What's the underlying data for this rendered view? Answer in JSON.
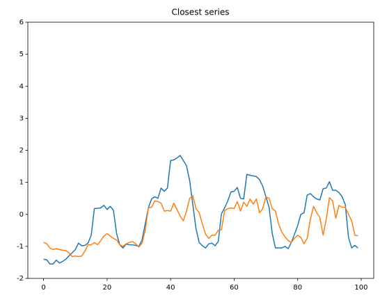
{
  "chart_data": {
    "type": "line",
    "title": "Closest series",
    "x": [
      0,
      1,
      2,
      3,
      4,
      5,
      6,
      7,
      8,
      9,
      10,
      11,
      12,
      13,
      14,
      15,
      16,
      17,
      18,
      19,
      20,
      21,
      22,
      23,
      24,
      25,
      26,
      27,
      28,
      29,
      30,
      31,
      32,
      33,
      34,
      35,
      36,
      37,
      38,
      39,
      40,
      41,
      42,
      43,
      44,
      45,
      46,
      47,
      48,
      49,
      50,
      51,
      52,
      53,
      54,
      55,
      56,
      57,
      58,
      59,
      60,
      61,
      62,
      63,
      64,
      65,
      66,
      67,
      68,
      69,
      70,
      71,
      72,
      73,
      74,
      75,
      76,
      77,
      78,
      79,
      80,
      81,
      82,
      83,
      84,
      85,
      86,
      87,
      88,
      89,
      90,
      91,
      92,
      93,
      94,
      95,
      96,
      97,
      98,
      99
    ],
    "series": [
      {
        "color": "#1f77b4",
        "values": [
          -1.4,
          -1.42,
          -1.55,
          -1.55,
          -1.43,
          -1.52,
          -1.47,
          -1.4,
          -1.3,
          -1.2,
          -1.1,
          -0.9,
          -0.98,
          -0.97,
          -0.9,
          -0.65,
          0.18,
          0.19,
          0.2,
          0.28,
          0.15,
          0.25,
          0.13,
          -0.6,
          -0.95,
          -1.05,
          -0.93,
          -0.95,
          -0.95,
          -0.97,
          -1.0,
          -0.8,
          -0.3,
          0.2,
          0.48,
          0.55,
          0.5,
          0.82,
          0.72,
          0.82,
          1.68,
          1.7,
          1.76,
          1.84,
          1.68,
          1.52,
          1.05,
          0.3,
          -0.45,
          -0.88,
          -0.98,
          -1.05,
          -0.92,
          -0.9,
          -0.98,
          -0.85,
          0.02,
          0.2,
          0.42,
          0.7,
          0.72,
          0.84,
          0.5,
          0.48,
          1.25,
          1.22,
          1.2,
          1.18,
          1.08,
          0.88,
          0.55,
          0.22,
          -0.6,
          -1.05,
          -1.05,
          -1.05,
          -1.0,
          -1.07,
          -0.88,
          -0.62,
          -0.35,
          0.0,
          0.05,
          0.6,
          0.65,
          0.55,
          0.48,
          0.45,
          0.8,
          0.82,
          1.02,
          0.75,
          0.75,
          0.68,
          0.55,
          0.3,
          -0.72,
          -1.05,
          -0.97,
          -1.05
        ]
      },
      {
        "color": "#ff7f0e",
        "values": [
          -0.87,
          -0.92,
          -1.05,
          -1.1,
          -1.07,
          -1.1,
          -1.12,
          -1.13,
          -1.2,
          -1.32,
          -1.3,
          -1.32,
          -1.3,
          -1.15,
          -0.95,
          -0.95,
          -0.88,
          -0.95,
          -0.82,
          -0.68,
          -0.6,
          -0.68,
          -0.75,
          -0.8,
          -0.95,
          -1.0,
          -0.92,
          -0.88,
          -0.85,
          -0.92,
          -1.02,
          -0.9,
          -0.5,
          0.2,
          0.22,
          0.42,
          0.4,
          0.35,
          0.1,
          0.12,
          0.1,
          0.35,
          0.15,
          -0.05,
          -0.2,
          0.1,
          0.5,
          0.58,
          0.18,
          0.05,
          -0.3,
          -0.62,
          -0.75,
          -0.65,
          -0.65,
          -0.5,
          -0.48,
          0.12,
          0.18,
          0.2,
          0.18,
          0.4,
          0.1,
          0.38,
          0.25,
          0.48,
          0.32,
          0.48,
          0.05,
          0.18,
          0.55,
          0.5,
          0.18,
          0.1,
          -0.3,
          -0.55,
          -0.7,
          -0.82,
          -0.88,
          -0.75,
          -0.65,
          -0.72,
          -0.92,
          -0.75,
          -0.15,
          0.25,
          0.05,
          -0.1,
          -0.65,
          -0.15,
          0.52,
          0.42,
          -0.12,
          0.28,
          0.22,
          0.22,
          0.0,
          -0.2,
          -0.65,
          -0.67
        ]
      }
    ],
    "xlim": [
      -4.95,
      103.95
    ],
    "xticks": [
      0,
      20,
      40,
      60,
      80,
      100
    ],
    "ylim": [
      -2,
      6
    ],
    "yticks": [
      -2,
      -1,
      0,
      1,
      2,
      3,
      4,
      5,
      6
    ]
  }
}
